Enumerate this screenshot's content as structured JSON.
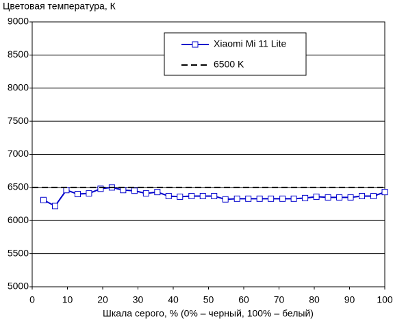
{
  "chart_data": {
    "type": "line",
    "y_label": "Цветовая температура, К",
    "x_label": "Шкала серого, % (0% – черный, 100% – белый)",
    "xlim": [
      0,
      100
    ],
    "xticks": [
      0,
      10,
      20,
      30,
      40,
      50,
      60,
      70,
      80,
      90,
      100
    ],
    "ylim": [
      5000,
      9000
    ],
    "yticks": [
      5000,
      5500,
      6000,
      6500,
      7000,
      7500,
      8000,
      8500,
      9000
    ],
    "grid": true,
    "legend": "top-center",
    "series": [
      {
        "name": "Xiaomi Mi 11 Lite",
        "color": "#0000cc",
        "marker": "square",
        "x": [
          3.2,
          6.5,
          9.7,
          12.9,
          16.1,
          19.4,
          22.6,
          25.8,
          29.0,
          32.3,
          35.5,
          38.7,
          41.9,
          45.2,
          48.4,
          51.6,
          54.8,
          58.1,
          61.3,
          64.5,
          67.7,
          71.0,
          74.2,
          77.4,
          80.6,
          83.9,
          87.1,
          90.3,
          93.5,
          96.8,
          100
        ],
        "values": [
          6310,
          6220,
          6460,
          6400,
          6410,
          6480,
          6500,
          6460,
          6450,
          6410,
          6430,
          6370,
          6360,
          6370,
          6370,
          6370,
          6320,
          6330,
          6330,
          6330,
          6330,
          6330,
          6330,
          6340,
          6360,
          6350,
          6350,
          6350,
          6370,
          6370,
          6430
        ]
      },
      {
        "name": "6500 K",
        "color": "#000000",
        "dashed": true,
        "x": [
          0,
          100
        ],
        "values": [
          6500,
          6500
        ]
      }
    ]
  }
}
